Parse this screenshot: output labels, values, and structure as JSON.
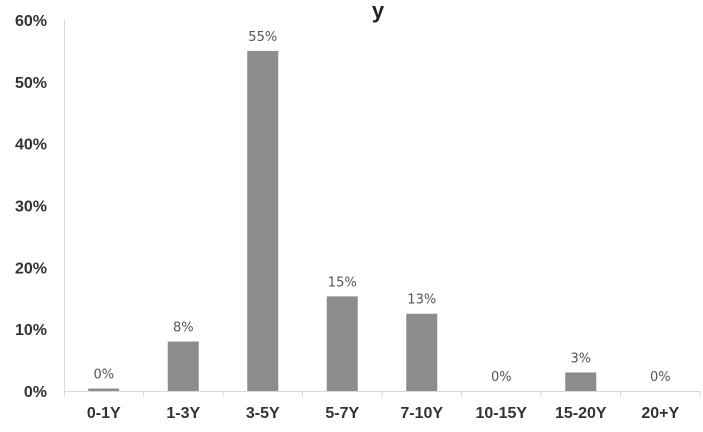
{
  "chart_data": {
    "type": "bar",
    "title_fragment": "y",
    "categories": [
      "0-1Y",
      "1-3Y",
      "3-5Y",
      "5-7Y",
      "7-10Y",
      "10-15Y",
      "15-20Y",
      "20+Y"
    ],
    "values": [
      0.4,
      8,
      55,
      15.3,
      12.5,
      0,
      3,
      0
    ],
    "data_labels": [
      "0%",
      "8%",
      "55%",
      "15%",
      "13%",
      "0%",
      "3%",
      "0%"
    ],
    "y_ticks": [
      "0%",
      "10%",
      "20%",
      "30%",
      "40%",
      "50%",
      "60%"
    ],
    "ylim": [
      0,
      60
    ],
    "grid": false,
    "bar_color": "#8c8c8c",
    "axis_color": "#d9d9d9"
  }
}
